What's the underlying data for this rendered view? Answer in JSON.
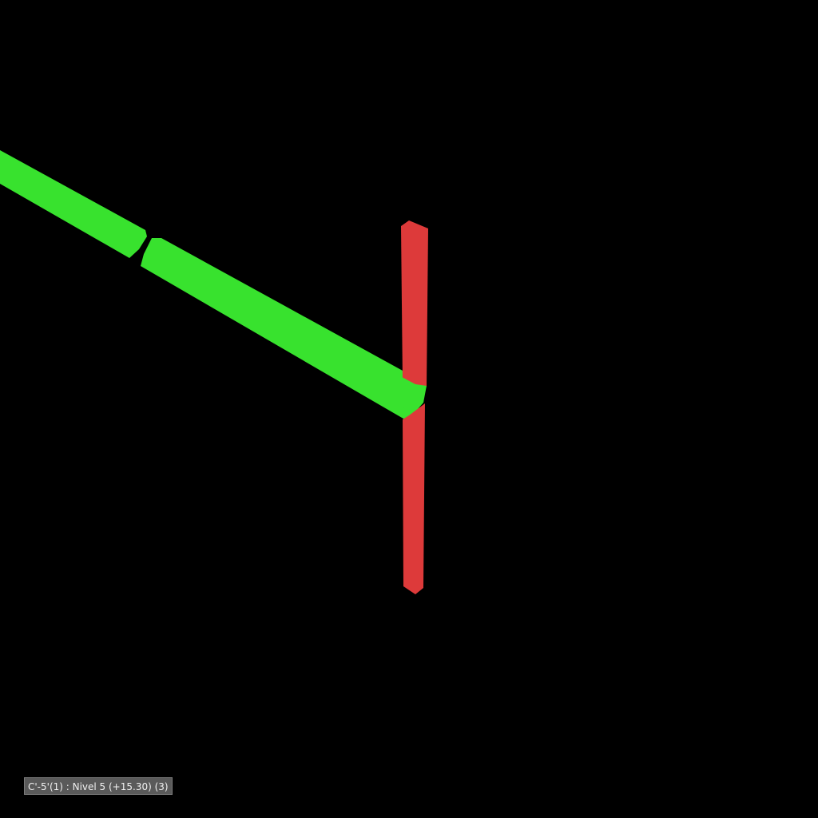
{
  "viewport": {
    "background": "#000000",
    "scene_elements": [
      {
        "name": "beam",
        "color": "#38e22e",
        "kind": "horizontal-member"
      },
      {
        "name": "column",
        "color": "#dd3a3a",
        "kind": "vertical-member"
      }
    ]
  },
  "element_label": {
    "text": "C'-5'(1) : Nivel 5 (+15.30) (3)"
  }
}
